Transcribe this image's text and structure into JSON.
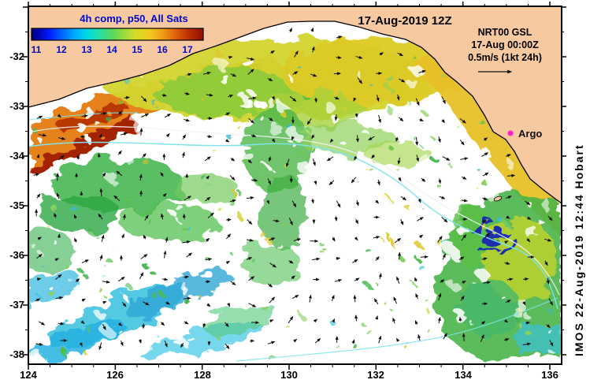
{
  "header": {
    "composite_label": "4h comp, p50, All Sats",
    "datetime_label": "17-Aug-2019 12Z"
  },
  "info_block": {
    "product": "NRT00 GSL",
    "valid_time": "17-Aug 00:00Z",
    "vector_scale": "0.5m/s (1kt 24h)"
  },
  "colorbar": {
    "tick_labels": [
      "11",
      "12",
      "13",
      "14",
      "15",
      "16",
      "17"
    ],
    "label_color": "#0008cc",
    "palette": [
      "#000085",
      "#0018ff",
      "#00a8ff",
      "#00d8e8",
      "#58d860",
      "#d8dc28",
      "#f0a018",
      "#c03000",
      "#8c0f00"
    ]
  },
  "axes": {
    "x_tick_labels": [
      "124",
      "126",
      "128",
      "130",
      "132",
      "134",
      "136"
    ],
    "y_tick_labels": [
      "-32",
      "-33",
      "-34",
      "-35",
      "-36",
      "-37",
      "-38"
    ]
  },
  "markers": {
    "argo_label": "Argo",
    "argo_color": "#ff1fd0"
  },
  "credit": "IMOS 22-Aug-2019 12:44 Hobart",
  "map_colors": {
    "land": "#f7c9a0",
    "ocean_nodata": "#ffffff",
    "contour_cyan": "#7de4ea"
  }
}
